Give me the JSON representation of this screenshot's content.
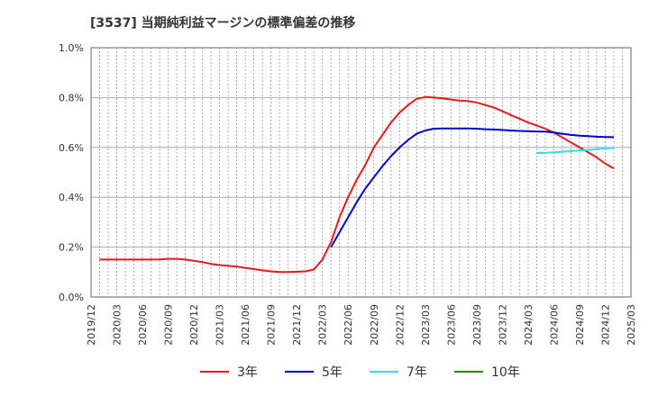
{
  "chart_data": {
    "type": "line",
    "title": "[3537]  当期純利益マージンの標準偏差の推移",
    "xlabel": "",
    "ylabel": "",
    "ylim": [
      0,
      1.0
    ],
    "yticks": [
      "0.0%",
      "0.2%",
      "0.4%",
      "0.6%",
      "0.8%",
      "1.0%"
    ],
    "ytick_values": [
      0,
      0.2,
      0.4,
      0.6,
      0.8,
      1.0
    ],
    "xticks": [
      "2019/12",
      "2020/03",
      "2020/06",
      "2020/09",
      "2020/12",
      "2021/03",
      "2021/06",
      "2021/09",
      "2021/12",
      "2022/03",
      "2022/06",
      "2022/09",
      "2022/12",
      "2023/03",
      "2023/06",
      "2023/09",
      "2023/12",
      "2024/03",
      "2024/06",
      "2024/09",
      "2024/12",
      "2025/03"
    ],
    "grid": "vertical monthly dotted, horizontal at y ticks",
    "legend_position": "bottom",
    "series": [
      {
        "name": "3年",
        "color": "#e41a1c",
        "points": [
          [
            1,
            0.15
          ],
          [
            2,
            0.15
          ],
          [
            3,
            0.15
          ],
          [
            4,
            0.15
          ],
          [
            5,
            0.15
          ],
          [
            6,
            0.15
          ],
          [
            7,
            0.15
          ],
          [
            8,
            0.151
          ],
          [
            9,
            0.153
          ],
          [
            10,
            0.153
          ],
          [
            11,
            0.15
          ],
          [
            12,
            0.145
          ],
          [
            13,
            0.14
          ],
          [
            14,
            0.133
          ],
          [
            15,
            0.128
          ],
          [
            16,
            0.125
          ],
          [
            17,
            0.122
          ],
          [
            18,
            0.117
          ],
          [
            19,
            0.112
          ],
          [
            20,
            0.107
          ],
          [
            21,
            0.103
          ],
          [
            22,
            0.1
          ],
          [
            23,
            0.1
          ],
          [
            24,
            0.101
          ],
          [
            25,
            0.103
          ],
          [
            26,
            0.11
          ],
          [
            27,
            0.15
          ],
          [
            28,
            0.22
          ],
          [
            29,
            0.32
          ],
          [
            30,
            0.4
          ],
          [
            31,
            0.47
          ],
          [
            32,
            0.53
          ],
          [
            33,
            0.6
          ],
          [
            34,
            0.65
          ],
          [
            35,
            0.7
          ],
          [
            36,
            0.74
          ],
          [
            37,
            0.77
          ],
          [
            38,
            0.795
          ],
          [
            39,
            0.802
          ],
          [
            40,
            0.8
          ],
          [
            41,
            0.797
          ],
          [
            42,
            0.792
          ],
          [
            43,
            0.788
          ],
          [
            44,
            0.786
          ],
          [
            45,
            0.78
          ],
          [
            46,
            0.77
          ],
          [
            47,
            0.76
          ],
          [
            48,
            0.745
          ],
          [
            49,
            0.73
          ],
          [
            50,
            0.715
          ],
          [
            51,
            0.7
          ],
          [
            52,
            0.688
          ],
          [
            53,
            0.675
          ],
          [
            54,
            0.66
          ],
          [
            55,
            0.64
          ],
          [
            56,
            0.62
          ],
          [
            57,
            0.6
          ],
          [
            58,
            0.58
          ],
          [
            59,
            0.56
          ],
          [
            60,
            0.535
          ],
          [
            61,
            0.515
          ]
        ]
      },
      {
        "name": "5年",
        "color": "#0000cc",
        "points": [
          [
            28,
            0.2
          ],
          [
            29,
            0.26
          ],
          [
            30,
            0.32
          ],
          [
            31,
            0.38
          ],
          [
            32,
            0.435
          ],
          [
            33,
            0.48
          ],
          [
            34,
            0.525
          ],
          [
            35,
            0.565
          ],
          [
            36,
            0.6
          ],
          [
            37,
            0.63
          ],
          [
            38,
            0.655
          ],
          [
            39,
            0.668
          ],
          [
            40,
            0.675
          ],
          [
            41,
            0.676
          ],
          [
            42,
            0.676
          ],
          [
            43,
            0.676
          ],
          [
            44,
            0.676
          ],
          [
            45,
            0.675
          ],
          [
            46,
            0.673
          ],
          [
            47,
            0.672
          ],
          [
            48,
            0.67
          ],
          [
            49,
            0.668
          ],
          [
            50,
            0.666
          ],
          [
            51,
            0.665
          ],
          [
            52,
            0.664
          ],
          [
            53,
            0.663
          ],
          [
            54,
            0.66
          ],
          [
            55,
            0.655
          ],
          [
            56,
            0.65
          ],
          [
            57,
            0.647
          ],
          [
            58,
            0.645
          ],
          [
            59,
            0.643
          ],
          [
            60,
            0.642
          ],
          [
            61,
            0.641
          ]
        ]
      },
      {
        "name": "7年",
        "color": "#33ddee",
        "points": [
          [
            52,
            0.578
          ],
          [
            53,
            0.578
          ],
          [
            54,
            0.58
          ],
          [
            55,
            0.583
          ],
          [
            56,
            0.585
          ],
          [
            57,
            0.588
          ],
          [
            58,
            0.59
          ],
          [
            59,
            0.593
          ],
          [
            60,
            0.596
          ],
          [
            61,
            0.598
          ]
        ]
      },
      {
        "name": "10年",
        "color": "#228b22",
        "points": []
      }
    ]
  }
}
